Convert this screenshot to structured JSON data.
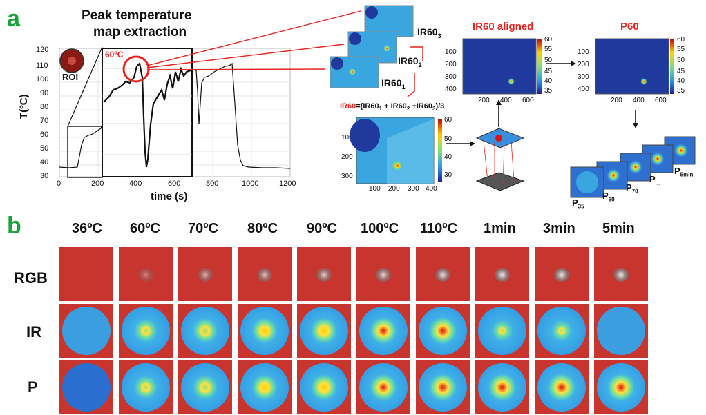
{
  "panel_a": {
    "letter": "a",
    "title_line1": "Peak temperature",
    "title_line2": "map extraction",
    "roi_label": "ROI",
    "sixty_label": "60ºC",
    "ylabel": "T(ºC)",
    "xlabel": "time (s)",
    "yticks": [
      "30",
      "40",
      "50",
      "60",
      "70",
      "80",
      "90",
      "100",
      "110",
      "120"
    ],
    "xticks": [
      "0",
      "200",
      "400",
      "600",
      "800",
      "1000",
      "1200"
    ],
    "ir_labels": [
      "IR60",
      "IR60",
      "IR60"
    ],
    "ir_subs": [
      "3",
      "2",
      "1"
    ],
    "formula_bar": "IR60",
    "formula_rest": "=(IR60",
    "formula_sub1": "1",
    "formula_mid1": " + IR60",
    "formula_sub2": "2",
    "formula_mid2": " +IR60",
    "formula_sub3": "3",
    "formula_end": ")/3",
    "aligned_title": "IR60 aligned",
    "p60_title": "P60",
    "heat_yticks": [
      "100",
      "200",
      "300",
      "400"
    ],
    "heat_xticks": [
      "200",
      "400",
      "600"
    ],
    "cbar_ticks": [
      "60",
      "55",
      "50",
      "45",
      "40",
      "35"
    ],
    "avg_yticks": [
      "100",
      "200",
      "300"
    ],
    "avg_xticks": [
      "100",
      "200",
      "300",
      "400"
    ],
    "avg_cbar": [
      "60",
      "50",
      "40",
      "30"
    ],
    "p_labels": [
      "P",
      "P",
      "P",
      "P",
      "P"
    ],
    "p_subs": [
      "35",
      "60",
      "70",
      "...",
      "5min"
    ]
  },
  "panel_b": {
    "letter": "b",
    "columns": [
      "36ºC",
      "60ºC",
      "70ºC",
      "80ºC",
      "90ºC",
      "100ºC",
      "110ºC",
      "1min",
      "3min",
      "5min"
    ],
    "rows": [
      "RGB",
      "IR",
      "P"
    ]
  },
  "colors": {
    "accent_red": "#e8231f",
    "panel_green": "#1aa33a",
    "heat_blue": "#1f3a9c",
    "tissue_red": "#c8342e"
  }
}
